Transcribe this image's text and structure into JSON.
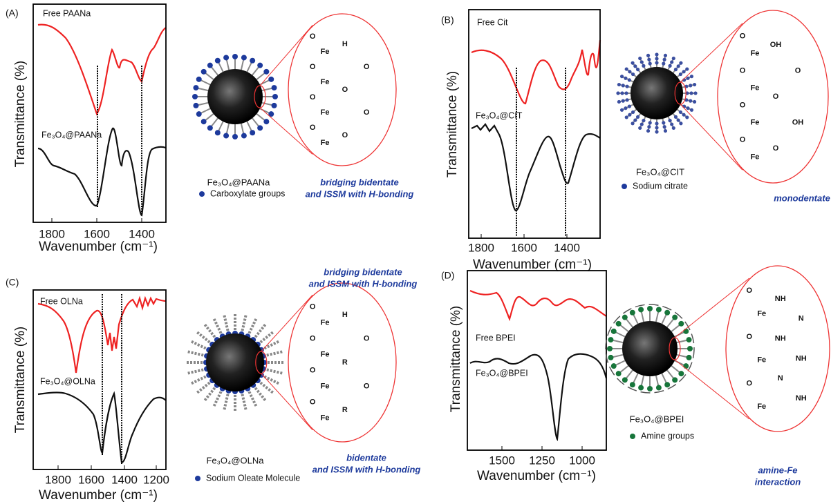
{
  "panels": [
    {
      "label": "(A)",
      "y_axis_title": "Transmittance (%)",
      "x_axis_title": "Wavenumber (cm⁻¹)",
      "x_ticks": [
        "1800",
        "1600",
        "1400"
      ],
      "spectrum_labels": [
        "Free PAANa",
        "Fe₃O₄@PAANa"
      ],
      "particle_label": "Fe₃O₄@PAANa",
      "legend": "Carboxylate groups",
      "binding_modes": [
        [
          "bridging bidentate",
          "and ISSM with H-bonding"
        ]
      ],
      "callout_labels": [
        "O",
        "Fe",
        "O",
        "Fe",
        "O",
        "Fe",
        "O",
        "Fe",
        "H",
        "O",
        "O",
        "O",
        "O"
      ]
    },
    {
      "label": "(B)",
      "y_axis_title": "Transmittance (%)",
      "x_axis_title": "Wavenumber (cm⁻¹)",
      "x_ticks": [
        "1800",
        "1600",
        "1400"
      ],
      "spectrum_labels": [
        "Free Cit",
        "Fe₃O₄@CIT"
      ],
      "particle_label": "Fe₃O₄@CIT",
      "legend": "Sodium citrate",
      "binding_modes": [
        [
          "monodentate"
        ]
      ],
      "callout_labels": [
        "O",
        "Fe",
        "O",
        "Fe",
        "O",
        "Fe",
        "O",
        "Fe",
        "OH",
        "O",
        "O",
        "OH",
        "O"
      ]
    },
    {
      "label": "(C)",
      "y_axis_title": "Transmittance (%)",
      "x_axis_title": "Wavenumber (cm⁻¹)",
      "x_ticks": [
        "1800",
        "1600",
        "1400",
        "1200"
      ],
      "spectrum_labels": [
        "Free OLNa",
        "Fe₃O₄@OLNa"
      ],
      "particle_label": "Fe₃O₄@OLNa",
      "legend": "Sodium Oleate Molecule",
      "binding_modes": [
        [
          "bridging bidentate",
          "and ISSM with H-bonding"
        ],
        [
          "bidentate",
          "and ISSM with H-bonding"
        ]
      ],
      "callout_labels": [
        "O",
        "Fe",
        "O",
        "Fe",
        "O",
        "Fe",
        "O",
        "Fe",
        "H",
        "O",
        "R",
        "O",
        "R"
      ]
    },
    {
      "label": "(D)",
      "y_axis_title": "Transmittance (%)",
      "x_axis_title": "Wavenumber (cm⁻¹)",
      "x_ticks": [
        "1500",
        "1250",
        "1000"
      ],
      "spectrum_labels": [
        "Free BPEI",
        "Fe₃O₄@BPEI"
      ],
      "particle_label": "Fe₃O₄@BPEI",
      "legend": "Amine groups",
      "binding_modes": [
        [
          "amine-Fe",
          "interaction"
        ]
      ],
      "callout_labels": [
        "O",
        "Fe",
        "O",
        "Fe",
        "O",
        "Fe",
        "NH",
        "N",
        "NH",
        "NH",
        "N",
        "NH"
      ]
    }
  ]
}
